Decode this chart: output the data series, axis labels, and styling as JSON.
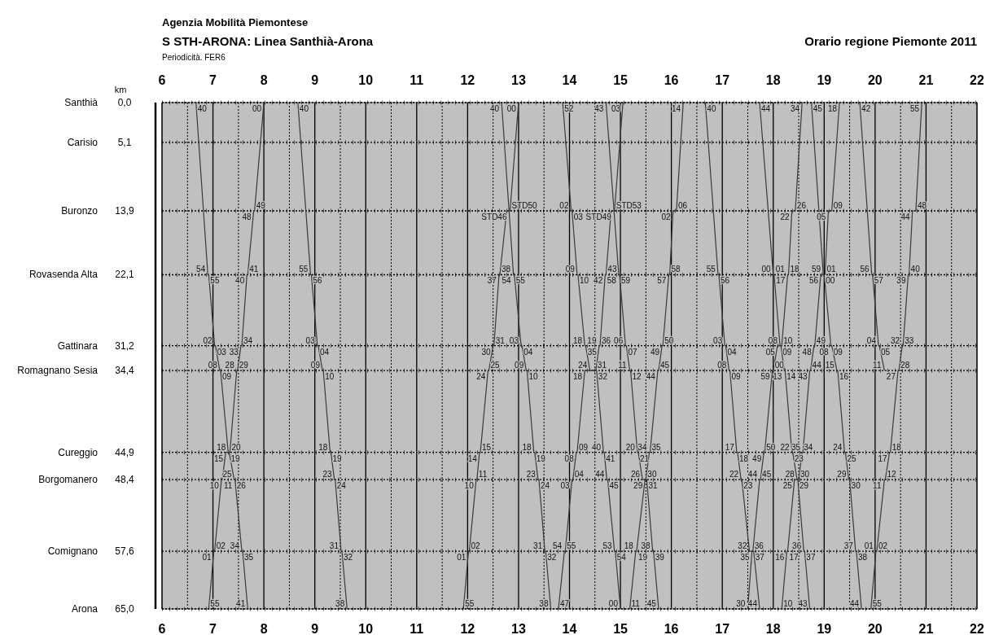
{
  "chart_data": {
    "type": "line",
    "title": "S STH-ARONA: Linea Santhià-Arona",
    "subtitle": "Orario regione Piemonte 2011",
    "ylabel": "km",
    "grid": true,
    "marker": "none",
    "line_style": "solid",
    "xlim": [
      6,
      22
    ],
    "xticks": [
      6,
      {
        "value": 6.5,
        "label": null
      },
      7,
      {
        "value": 7.5,
        "label": null
      },
      8,
      {
        "value": 8.5,
        "label": null
      },
      9,
      {
        "value": 9.5,
        "label": null
      },
      10,
      {
        "value": 10.5,
        "label": null
      },
      11,
      {
        "value": 11.5,
        "label": null
      },
      12,
      {
        "value": 12.5,
        "label": null
      },
      13,
      {
        "value": 13.5,
        "label": null
      },
      14,
      {
        "value": 14.5,
        "label": null
      },
      15,
      {
        "value": 15.5,
        "label": null
      },
      16,
      {
        "value": 16.5,
        "label": null
      },
      17,
      {
        "value": 17.5,
        "label": null
      },
      18,
      {
        "value": 18.5,
        "label": null
      },
      19,
      {
        "value": 19.5,
        "label": null
      },
      20,
      {
        "value": 20.5,
        "label": null
      },
      21,
      {
        "value": 21.5,
        "label": null
      },
      22
    ],
    "x2lim": [
      6,
      22
    ],
    "x2ticks": [
      6,
      7,
      8,
      9,
      10,
      11,
      12,
      13,
      14,
      15,
      16,
      17,
      18,
      19,
      20,
      21,
      22
    ],
    "ylim": [
      65,
      0
    ],
    "yticks": [
      {
        "value": 0,
        "label": "0,0"
      },
      {
        "value": 5.1,
        "label": "5,1"
      },
      {
        "value": 13.9,
        "label": "13,9"
      },
      {
        "value": 22.1,
        "label": "22,1"
      },
      {
        "value": 31.2,
        "label": "31,2"
      },
      {
        "value": 34.4,
        "label": "34,4"
      },
      {
        "value": 44.9,
        "label": "44,9"
      },
      {
        "value": 48.4,
        "label": "48,4"
      },
      {
        "value": 57.6,
        "label": "57,6"
      },
      {
        "value": 65,
        "label": "65,0"
      }
    ],
    "series": [
      {
        "color": "#3a3a3a",
        "x": [
          6.667,
          6.9,
          6.917,
          7.033,
          7.05,
          7.133,
          7.15,
          7.3,
          7.317,
          7.417,
          7.433,
          7.567,
          7.583,
          7.683
        ],
        "values": [
          0,
          22.1,
          22.1,
          31.2,
          31.2,
          34.4,
          34.4,
          44.9,
          44.9,
          48.4,
          48.4,
          57.6,
          57.6,
          65
        ]
      },
      {
        "color": "#3a3a3a",
        "x": [
          6.917,
          7.017,
          7.033,
          7.167,
          7.183,
          7.25,
          7.333,
          7.467,
          7.483,
          7.55,
          7.567,
          7.667,
          7.683,
          7.8,
          7.817,
          8.0
        ],
        "values": [
          65,
          57.6,
          57.6,
          48.4,
          48.4,
          44.9,
          44.9,
          34.4,
          34.4,
          31.2,
          31.2,
          22.1,
          22.1,
          13.9,
          13.9,
          0
        ]
      },
      {
        "color": "#3a3a3a",
        "x": [
          8.667,
          8.917,
          8.933,
          9.05,
          9.067,
          9.15,
          9.167,
          9.3,
          9.317,
          9.383,
          9.4,
          9.517,
          9.533,
          9.633
        ],
        "values": [
          0,
          22.1,
          22.1,
          31.2,
          31.2,
          34.4,
          34.4,
          44.9,
          44.9,
          48.4,
          48.4,
          57.6,
          57.6,
          65
        ]
      },
      {
        "color": "#3a3a3a",
        "x": [
          11.917,
          12.017,
          12.033,
          12.167,
          12.183,
          12.233,
          12.25,
          12.4,
          12.417,
          12.5,
          12.517,
          12.617,
          12.633,
          12.767,
          12.833,
          13.0
        ],
        "values": [
          65,
          57.6,
          57.6,
          48.4,
          48.4,
          44.9,
          44.9,
          34.4,
          34.4,
          31.2,
          31.2,
          22.1,
          22.1,
          13.9,
          13.9,
          0
        ]
      },
      {
        "color": "#3a3a3a",
        "x": [
          12.667,
          12.9,
          12.917,
          13.05,
          13.067,
          13.15,
          13.167,
          13.3,
          13.317,
          13.383,
          13.4,
          13.517,
          13.533,
          13.633
        ],
        "values": [
          0,
          22.1,
          22.1,
          31.2,
          31.2,
          34.4,
          34.4,
          44.9,
          44.9,
          48.4,
          48.4,
          57.6,
          57.6,
          65
        ]
      },
      {
        "color": "#3a3a3a",
        "x": [
          13.783,
          13.9,
          13.917,
          14.05,
          14.067,
          14.133,
          14.15,
          14.3,
          14.517,
          14.583,
          14.6,
          14.7,
          14.717,
          14.817,
          14.883,
          15.05
        ],
        "values": [
          65,
          57.6,
          57.6,
          48.4,
          48.4,
          44.9,
          44.9,
          34.4,
          34.4,
          31.2,
          31.2,
          22.1,
          22.1,
          13.9,
          13.9,
          0
        ]
      },
      {
        "color": "#3a3a3a",
        "x": [
          13.867,
          14.033,
          14.05,
          14.15,
          14.167,
          14.3,
          14.317,
          14.4,
          14.533,
          14.667,
          14.683,
          14.733,
          14.75,
          14.883,
          14.9,
          15.0
        ],
        "values": [
          0,
          13.9,
          13.9,
          22.1,
          22.1,
          31.2,
          31.2,
          34.4,
          34.4,
          44.9,
          44.9,
          48.4,
          48.4,
          57.6,
          57.6,
          65
        ]
      },
      {
        "color": "#3a3a3a",
        "x": [
          14.717,
          14.967,
          14.983,
          15.1,
          15.117,
          15.183,
          15.2,
          15.333,
          15.35,
          15.433,
          15.517,
          15.633,
          15.65,
          15.75
        ],
        "values": [
          0,
          22.1,
          22.1,
          31.2,
          31.2,
          34.4,
          34.4,
          44.9,
          44.9,
          48.4,
          48.4,
          57.6,
          57.6,
          65
        ]
      },
      {
        "color": "#3a3a3a",
        "x": [
          15.183,
          15.3,
          15.317,
          15.483,
          15.5,
          15.567,
          15.583,
          15.733,
          15.75,
          15.817,
          15.833,
          15.95,
          15.967,
          16.033,
          16.1,
          16.233
        ],
        "values": [
          65,
          57.6,
          57.6,
          48.4,
          48.4,
          44.9,
          44.9,
          34.4,
          34.4,
          31.2,
          31.2,
          22.1,
          22.1,
          13.9,
          13.9,
          0
        ]
      },
      {
        "color": "#3a3a3a",
        "x": [
          16.667,
          16.917,
          16.933,
          17.05,
          17.067,
          17.133,
          17.15,
          17.283,
          17.3,
          17.367,
          17.383,
          17.533,
          17.617,
          17.733
        ],
        "values": [
          0,
          22.1,
          22.1,
          31.2,
          31.2,
          34.4,
          34.4,
          44.9,
          44.9,
          48.4,
          48.4,
          57.6,
          57.6,
          65
        ]
      },
      {
        "color": "#3a3a3a",
        "x": [
          17.5,
          17.583,
          17.6,
          17.733,
          17.75,
          17.817,
          17.833,
          17.983,
          18.0,
          18.083,
          18.167,
          18.283,
          18.3,
          18.367,
          18.433,
          18.567
        ],
        "values": [
          65,
          57.6,
          57.6,
          48.4,
          48.4,
          44.9,
          44.9,
          34.4,
          34.4,
          31.2,
          31.2,
          22.1,
          22.1,
          13.9,
          13.9,
          0
        ]
      },
      {
        "color": "#3a3a3a",
        "x": [
          17.733,
          18.0,
          18.017,
          18.133,
          18.15,
          18.217,
          18.233,
          18.367,
          18.383,
          18.467,
          18.483,
          18.6,
          18.617,
          18.717
        ],
        "values": [
          0,
          22.1,
          22.1,
          31.2,
          31.2,
          34.4,
          34.4,
          44.9,
          44.9,
          48.4,
          48.4,
          57.6,
          57.6,
          65
        ]
      },
      {
        "color": "#3a3a3a",
        "x": [
          18.167,
          18.267,
          18.283,
          18.417,
          18.5,
          18.567,
          18.583,
          18.717,
          18.733,
          18.8,
          18.817,
          18.933,
          19.017,
          19.083,
          19.15,
          19.3
        ],
        "values": [
          65,
          57.6,
          57.6,
          48.4,
          48.4,
          44.9,
          44.9,
          34.4,
          34.4,
          31.2,
          31.2,
          22.1,
          22.1,
          13.9,
          13.9,
          0
        ]
      },
      {
        "color": "#3a3a3a",
        "x": [
          18.75,
          18.983,
          19.0,
          19.133,
          19.15,
          19.25,
          19.267,
          19.4,
          19.417,
          19.483,
          19.5,
          19.617,
          19.633,
          19.733
        ],
        "values": [
          0,
          22.1,
          22.1,
          31.2,
          31.2,
          34.4,
          34.4,
          44.9,
          44.9,
          48.4,
          48.4,
          57.6,
          57.6,
          65
        ]
      },
      {
        "color": "#3a3a3a",
        "x": [
          19.7,
          19.933,
          19.95,
          20.067,
          20.083,
          20.183
        ],
        "values": [
          0,
          22.1,
          22.1,
          31.2,
          31.2,
          34.4
        ]
      },
      {
        "color": "#3a3a3a",
        "x": [
          19.917,
          20.017,
          20.033,
          20.183,
          20.2,
          20.283,
          20.3,
          20.45,
          20.467,
          20.533,
          20.55,
          20.65,
          20.667,
          20.733,
          20.8,
          20.917
        ],
        "values": [
          65,
          57.6,
          57.6,
          48.4,
          48.4,
          44.9,
          44.9,
          34.4,
          34.4,
          31.2,
          31.2,
          22.1,
          22.1,
          13.9,
          13.9,
          0
        ]
      }
    ],
    "annotations": [
      "Agenzia Mobilità Piemontese",
      "Periodicità. FER6",
      "Santhià",
      "Carisio",
      "Buronzo",
      "Rovasenda Alta",
      "Gattinara",
      "Romagnano Sesia",
      "Cureggio",
      "Borgomanero",
      "Comignano",
      "Arona",
      {
        "text": "40",
        "x": 6.667,
        "y": 0
      },
      {
        "text": "54",
        "x": 6.9,
        "y": 22.1
      },
      {
        "text": "55",
        "x": 6.917,
        "y": 22.1
      },
      {
        "text": "02",
        "x": 7.033,
        "y": 31.2
      },
      {
        "text": "03",
        "x": 7.05,
        "y": 31.2
      },
      {
        "text": "08",
        "x": 7.133,
        "y": 34.4
      },
      {
        "text": "09",
        "x": 7.15,
        "y": 34.4
      },
      {
        "text": "18",
        "x": 7.3,
        "y": 44.9
      },
      {
        "text": "19",
        "x": 7.317,
        "y": 44.9
      },
      {
        "text": "25",
        "x": 7.417,
        "y": 48.4
      },
      {
        "text": "26",
        "x": 7.433,
        "y": 48.4
      },
      {
        "text": "34",
        "x": 7.567,
        "y": 57.6
      },
      {
        "text": "35",
        "x": 7.583,
        "y": 57.6
      },
      {
        "text": "41",
        "x": 7.683,
        "y": 65
      },
      {
        "text": "55",
        "x": 6.917,
        "y": 65
      },
      {
        "text": "01",
        "x": 7.017,
        "y": 57.6
      },
      {
        "text": "02",
        "x": 7.033,
        "y": 57.6
      },
      {
        "text": "10",
        "x": 7.167,
        "y": 48.4
      },
      {
        "text": "11",
        "x": 7.183,
        "y": 48.4
      },
      {
        "text": "15",
        "x": 7.25,
        "y": 44.9
      },
      {
        "text": "20",
        "x": 7.333,
        "y": 44.9
      },
      {
        "text": "28",
        "x": 7.467,
        "y": 34.4
      },
      {
        "text": "29",
        "x": 7.483,
        "y": 34.4
      },
      {
        "text": "33",
        "x": 7.55,
        "y": 31.2
      },
      {
        "text": "34",
        "x": 7.567,
        "y": 31.2
      },
      {
        "text": "40",
        "x": 7.667,
        "y": 22.1
      },
      {
        "text": "41",
        "x": 7.683,
        "y": 22.1
      },
      {
        "text": "48",
        "x": 7.8,
        "y": 13.9
      },
      {
        "text": "49",
        "x": 7.817,
        "y": 13.9
      },
      {
        "text": "00",
        "x": 8.0,
        "y": 0
      },
      {
        "text": "40",
        "x": 8.667,
        "y": 0
      },
      {
        "text": "55",
        "x": 8.917,
        "y": 22.1
      },
      {
        "text": "56",
        "x": 8.933,
        "y": 22.1
      },
      {
        "text": "03",
        "x": 9.05,
        "y": 31.2
      },
      {
        "text": "04",
        "x": 9.067,
        "y": 31.2
      },
      {
        "text": "09",
        "x": 9.15,
        "y": 34.4
      },
      {
        "text": "10",
        "x": 9.167,
        "y": 34.4
      },
      {
        "text": "18",
        "x": 9.3,
        "y": 44.9
      },
      {
        "text": "19",
        "x": 9.317,
        "y": 44.9
      },
      {
        "text": "23",
        "x": 9.383,
        "y": 48.4
      },
      {
        "text": "24",
        "x": 9.4,
        "y": 48.4
      },
      {
        "text": "31",
        "x": 9.517,
        "y": 57.6
      },
      {
        "text": "32",
        "x": 9.533,
        "y": 57.6
      },
      {
        "text": "38",
        "x": 9.633,
        "y": 65
      },
      {
        "text": "55",
        "x": 11.917,
        "y": 65
      },
      {
        "text": "01",
        "x": 12.017,
        "y": 57.6
      },
      {
        "text": "02",
        "x": 12.033,
        "y": 57.6
      },
      {
        "text": "10",
        "x": 12.167,
        "y": 48.4
      },
      {
        "text": "11",
        "x": 12.183,
        "y": 48.4
      },
      {
        "text": "14",
        "x": 12.233,
        "y": 44.9
      },
      {
        "text": "15",
        "x": 12.25,
        "y": 44.9
      },
      {
        "text": "24",
        "x": 12.4,
        "y": 34.4
      },
      {
        "text": "25",
        "x": 12.417,
        "y": 34.4
      },
      {
        "text": "30",
        "x": 12.5,
        "y": 31.2
      },
      {
        "text": "31",
        "x": 12.517,
        "y": 31.2
      },
      {
        "text": "37",
        "x": 12.617,
        "y": 22.1
      },
      {
        "text": "38",
        "x": 12.633,
        "y": 22.1
      },
      {
        "text": "STD46",
        "x": 12.767,
        "y": 13.9
      },
      {
        "text": "STD50",
        "x": 12.833,
        "y": 13.9
      },
      {
        "text": "00",
        "x": 13.0,
        "y": 0
      },
      {
        "text": "40",
        "x": 12.667,
        "y": 0
      },
      {
        "text": "54",
        "x": 12.9,
        "y": 22.1
      },
      {
        "text": "55",
        "x": 12.917,
        "y": 22.1
      },
      {
        "text": "03",
        "x": 13.05,
        "y": 31.2
      },
      {
        "text": "04",
        "x": 13.067,
        "y": 31.2
      },
      {
        "text": "09",
        "x": 13.15,
        "y": 34.4
      },
      {
        "text": "10",
        "x": 13.167,
        "y": 34.4
      },
      {
        "text": "18",
        "x": 13.3,
        "y": 44.9
      },
      {
        "text": "19",
        "x": 13.317,
        "y": 44.9
      },
      {
        "text": "23",
        "x": 13.383,
        "y": 48.4
      },
      {
        "text": "24",
        "x": 13.4,
        "y": 48.4
      },
      {
        "text": "31",
        "x": 13.517,
        "y": 57.6
      },
      {
        "text": "32",
        "x": 13.533,
        "y": 57.6
      },
      {
        "text": "38",
        "x": 13.633,
        "y": 65
      },
      {
        "text": "47",
        "x": 13.783,
        "y": 65
      },
      {
        "text": "54",
        "x": 13.9,
        "y": 57.6
      },
      {
        "text": "55",
        "x": 13.917,
        "y": 57.6
      },
      {
        "text": "03",
        "x": 14.05,
        "y": 48.4
      },
      {
        "text": "04",
        "x": 14.067,
        "y": 48.4
      },
      {
        "text": "08",
        "x": 14.133,
        "y": 44.9
      },
      {
        "text": "09",
        "x": 14.15,
        "y": 44.9
      },
      {
        "text": "18",
        "x": 14.3,
        "y": 34.4
      },
      {
        "text": "31",
        "x": 14.517,
        "y": 34.4
      },
      {
        "text": "35",
        "x": 14.583,
        "y": 31.2
      },
      {
        "text": "36",
        "x": 14.6,
        "y": 31.2
      },
      {
        "text": "42",
        "x": 14.7,
        "y": 22.1
      },
      {
        "text": "43",
        "x": 14.717,
        "y": 22.1
      },
      {
        "text": "STD49",
        "x": 14.817,
        "y": 13.9
      },
      {
        "text": "STD53",
        "x": 14.883,
        "y": 13.9
      },
      {
        "text": "03",
        "x": 15.05,
        "y": 0
      },
      {
        "text": "52",
        "x": 13.867,
        "y": 0
      },
      {
        "text": "02",
        "x": 14.033,
        "y": 13.9
      },
      {
        "text": "03",
        "x": 14.05,
        "y": 13.9
      },
      {
        "text": "09",
        "x": 14.15,
        "y": 22.1
      },
      {
        "text": "10",
        "x": 14.167,
        "y": 22.1
      },
      {
        "text": "18",
        "x": 14.3,
        "y": 31.2
      },
      {
        "text": "19",
        "x": 14.317,
        "y": 31.2
      },
      {
        "text": "24",
        "x": 14.4,
        "y": 34.4
      },
      {
        "text": "32",
        "x": 14.533,
        "y": 34.4
      },
      {
        "text": "40",
        "x": 14.667,
        "y": 44.9
      },
      {
        "text": "41",
        "x": 14.683,
        "y": 44.9
      },
      {
        "text": "44",
        "x": 14.733,
        "y": 48.4
      },
      {
        "text": "45",
        "x": 14.75,
        "y": 48.4
      },
      {
        "text": "53",
        "x": 14.883,
        "y": 57.6
      },
      {
        "text": "54",
        "x": 14.9,
        "y": 57.6
      },
      {
        "text": "00",
        "x": 15.0,
        "y": 65
      },
      {
        "text": "43",
        "x": 14.717,
        "y": 0
      },
      {
        "text": "58",
        "x": 14.967,
        "y": 22.1
      },
      {
        "text": "59",
        "x": 14.983,
        "y": 22.1
      },
      {
        "text": "06",
        "x": 15.1,
        "y": 31.2
      },
      {
        "text": "07",
        "x": 15.117,
        "y": 31.2
      },
      {
        "text": "11",
        "x": 15.183,
        "y": 34.4
      },
      {
        "text": "12",
        "x": 15.2,
        "y": 34.4
      },
      {
        "text": "20",
        "x": 15.333,
        "y": 44.9
      },
      {
        "text": "21",
        "x": 15.35,
        "y": 44.9
      },
      {
        "text": "26",
        "x": 15.433,
        "y": 48.4
      },
      {
        "text": "31",
        "x": 15.517,
        "y": 48.4
      },
      {
        "text": "38",
        "x": 15.633,
        "y": 57.6
      },
      {
        "text": "39",
        "x": 15.65,
        "y": 57.6
      },
      {
        "text": "45",
        "x": 15.75,
        "y": 65
      },
      {
        "text": "11",
        "x": 15.183,
        "y": 65
      },
      {
        "text": "18",
        "x": 15.3,
        "y": 57.6
      },
      {
        "text": "19",
        "x": 15.317,
        "y": 57.6
      },
      {
        "text": "29",
        "x": 15.483,
        "y": 48.4
      },
      {
        "text": "30",
        "x": 15.5,
        "y": 48.4
      },
      {
        "text": "34",
        "x": 15.567,
        "y": 44.9
      },
      {
        "text": "35",
        "x": 15.583,
        "y": 44.9
      },
      {
        "text": "44",
        "x": 15.733,
        "y": 34.4
      },
      {
        "text": "45",
        "x": 15.75,
        "y": 34.4
      },
      {
        "text": "49",
        "x": 15.817,
        "y": 31.2
      },
      {
        "text": "50",
        "x": 15.833,
        "y": 31.2
      },
      {
        "text": "57",
        "x": 15.95,
        "y": 22.1
      },
      {
        "text": "58",
        "x": 15.967,
        "y": 22.1
      },
      {
        "text": "02",
        "x": 16.033,
        "y": 13.9
      },
      {
        "text": "06",
        "x": 16.1,
        "y": 13.9
      },
      {
        "text": "14",
        "x": 16.233,
        "y": 0
      },
      {
        "text": "40",
        "x": 16.667,
        "y": 0
      },
      {
        "text": "55",
        "x": 16.917,
        "y": 22.1
      },
      {
        "text": "56",
        "x": 16.933,
        "y": 22.1
      },
      {
        "text": "03",
        "x": 17.05,
        "y": 31.2
      },
      {
        "text": "04",
        "x": 17.067,
        "y": 31.2
      },
      {
        "text": "08",
        "x": 17.133,
        "y": 34.4
      },
      {
        "text": "09",
        "x": 17.15,
        "y": 34.4
      },
      {
        "text": "17",
        "x": 17.283,
        "y": 44.9
      },
      {
        "text": "18",
        "x": 17.3,
        "y": 44.9
      },
      {
        "text": "22",
        "x": 17.367,
        "y": 48.4
      },
      {
        "text": "23",
        "x": 17.383,
        "y": 48.4
      },
      {
        "text": "32",
        "x": 17.533,
        "y": 57.6
      },
      {
        "text": "37",
        "x": 17.617,
        "y": 57.6
      },
      {
        "text": "44",
        "x": 17.733,
        "y": 65
      },
      {
        "text": "30",
        "x": 17.5,
        "y": 65
      },
      {
        "text": "35",
        "x": 17.583,
        "y": 57.6
      },
      {
        "text": "36",
        "x": 17.6,
        "y": 57.6
      },
      {
        "text": "44",
        "x": 17.733,
        "y": 48.4
      },
      {
        "text": "45",
        "x": 17.75,
        "y": 48.4
      },
      {
        "text": "49",
        "x": 17.817,
        "y": 44.9
      },
      {
        "text": "50",
        "x": 17.833,
        "y": 44.9
      },
      {
        "text": "59",
        "x": 17.983,
        "y": 34.4
      },
      {
        "text": "00",
        "x": 18.0,
        "y": 34.4
      },
      {
        "text": "05",
        "x": 18.083,
        "y": 31.2
      },
      {
        "text": "10",
        "x": 18.167,
        "y": 31.2
      },
      {
        "text": "17",
        "x": 18.283,
        "y": 22.1
      },
      {
        "text": "18",
        "x": 18.3,
        "y": 22.1
      },
      {
        "text": "22",
        "x": 18.367,
        "y": 13.9
      },
      {
        "text": "26",
        "x": 18.433,
        "y": 13.9
      },
      {
        "text": "34",
        "x": 18.567,
        "y": 0
      },
      {
        "text": "44",
        "x": 17.733,
        "y": 0
      },
      {
        "text": "00",
        "x": 18.0,
        "y": 22.1
      },
      {
        "text": "01",
        "x": 18.017,
        "y": 22.1
      },
      {
        "text": "08",
        "x": 18.133,
        "y": 31.2
      },
      {
        "text": "09",
        "x": 18.15,
        "y": 31.2
      },
      {
        "text": "13",
        "x": 18.217,
        "y": 34.4
      },
      {
        "text": "14",
        "x": 18.233,
        "y": 34.4
      },
      {
        "text": "22",
        "x": 18.367,
        "y": 44.9
      },
      {
        "text": "23",
        "x": 18.383,
        "y": 44.9
      },
      {
        "text": "28",
        "x": 18.467,
        "y": 48.4
      },
      {
        "text": "29",
        "x": 18.483,
        "y": 48.4
      },
      {
        "text": "36",
        "x": 18.6,
        "y": 57.6
      },
      {
        "text": "37",
        "x": 18.617,
        "y": 57.6
      },
      {
        "text": "43",
        "x": 18.717,
        "y": 65
      },
      {
        "text": "10",
        "x": 18.167,
        "y": 65
      },
      {
        "text": "16",
        "x": 18.267,
        "y": 57.6
      },
      {
        "text": "17",
        "x": 18.283,
        "y": 57.6
      },
      {
        "text": "25",
        "x": 18.417,
        "y": 48.4
      },
      {
        "text": "30",
        "x": 18.5,
        "y": 48.4
      },
      {
        "text": "34",
        "x": 18.567,
        "y": 44.9
      },
      {
        "text": "35",
        "x": 18.583,
        "y": 44.9
      },
      {
        "text": "43",
        "x": 18.717,
        "y": 34.4
      },
      {
        "text": "44",
        "x": 18.733,
        "y": 34.4
      },
      {
        "text": "48",
        "x": 18.8,
        "y": 31.2
      },
      {
        "text": "49",
        "x": 18.817,
        "y": 31.2
      },
      {
        "text": "56",
        "x": 18.933,
        "y": 22.1
      },
      {
        "text": "01",
        "x": 19.017,
        "y": 22.1
      },
      {
        "text": "05",
        "x": 19.083,
        "y": 13.9
      },
      {
        "text": "09",
        "x": 19.15,
        "y": 13.9
      },
      {
        "text": "18",
        "x": 19.3,
        "y": 0
      },
      {
        "text": "45",
        "x": 18.75,
        "y": 0
      },
      {
        "text": "59",
        "x": 18.983,
        "y": 22.1
      },
      {
        "text": "00",
        "x": 19.0,
        "y": 22.1
      },
      {
        "text": "08",
        "x": 19.133,
        "y": 31.2
      },
      {
        "text": "09",
        "x": 19.15,
        "y": 31.2
      },
      {
        "text": "15",
        "x": 19.25,
        "y": 34.4
      },
      {
        "text": "16",
        "x": 19.267,
        "y": 34.4
      },
      {
        "text": "24",
        "x": 19.4,
        "y": 44.9
      },
      {
        "text": "25",
        "x": 19.417,
        "y": 44.9
      },
      {
        "text": "29",
        "x": 19.483,
        "y": 48.4
      },
      {
        "text": "30",
        "x": 19.5,
        "y": 48.4
      },
      {
        "text": "37",
        "x": 19.617,
        "y": 57.6
      },
      {
        "text": "38",
        "x": 19.633,
        "y": 57.6
      },
      {
        "text": "44",
        "x": 19.733,
        "y": 65
      },
      {
        "text": "42",
        "x": 19.7,
        "y": 0
      },
      {
        "text": "56",
        "x": 19.933,
        "y": 22.1
      },
      {
        "text": "57",
        "x": 19.95,
        "y": 22.1
      },
      {
        "text": "04",
        "x": 20.067,
        "y": 31.2
      },
      {
        "text": "05",
        "x": 20.083,
        "y": 31.2
      },
      {
        "text": "11",
        "x": 20.183,
        "y": 34.4
      },
      {
        "text": "55",
        "x": 19.917,
        "y": 65
      },
      {
        "text": "01",
        "x": 20.017,
        "y": 57.6
      },
      {
        "text": "02",
        "x": 20.033,
        "y": 57.6
      },
      {
        "text": "11",
        "x": 20.183,
        "y": 48.4
      },
      {
        "text": "12",
        "x": 20.2,
        "y": 48.4
      },
      {
        "text": "17",
        "x": 20.283,
        "y": 44.9
      },
      {
        "text": "18",
        "x": 20.3,
        "y": 44.9
      },
      {
        "text": "27",
        "x": 20.45,
        "y": 34.4
      },
      {
        "text": "28",
        "x": 20.467,
        "y": 34.4
      },
      {
        "text": "32",
        "x": 20.533,
        "y": 31.2
      },
      {
        "text": "33",
        "x": 20.55,
        "y": 31.2
      },
      {
        "text": "39",
        "x": 20.65,
        "y": 22.1
      },
      {
        "text": "40",
        "x": 20.667,
        "y": 22.1
      },
      {
        "text": "44",
        "x": 20.733,
        "y": 13.9
      },
      {
        "text": "48",
        "x": 20.8,
        "y": 13.9
      },
      {
        "text": "55",
        "x": 20.917,
        "y": 0
      }
    ]
  }
}
